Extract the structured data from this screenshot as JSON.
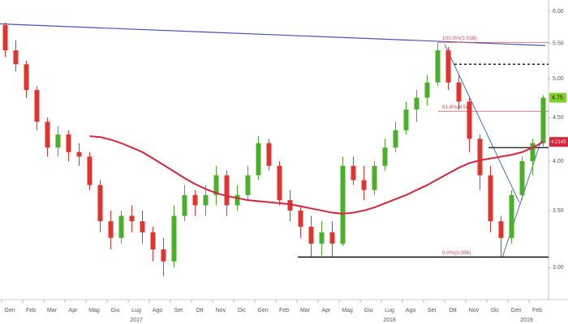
{
  "chart_data": {
    "type": "candlestick",
    "log_scale": true,
    "ylim": [
      2.78,
      6.12
    ],
    "yticks": [
      {
        "value": 3,
        "label": "3.00"
      },
      {
        "value": 3.5,
        "label": "3.50"
      },
      {
        "value": 4,
        "label": "4.00"
      },
      {
        "value": 4.5,
        "label": "4.50"
      },
      {
        "value": 5,
        "label": "5.00"
      },
      {
        "value": 5.5,
        "label": "5.50"
      },
      {
        "value": 6,
        "label": "6.00"
      }
    ],
    "categories": [
      "Gen",
      "Feb",
      "Mar",
      "Apr",
      "Mag",
      "Giu",
      "Lug",
      "Ago",
      "Set",
      "Ott",
      "Nov",
      "Dic",
      "Gen",
      "Feb",
      "Mar",
      "Apr",
      "Mag",
      "Giu",
      "Lug",
      "Ago",
      "Set",
      "Ott",
      "Nov",
      "Dic",
      "Gen",
      "Feb"
    ],
    "years": [
      "2017",
      "2018",
      "2019"
    ],
    "up_color": "#4caf2a",
    "down_color": "#e0342f",
    "candles": [
      [
        5.78,
        5.82,
        5.3,
        5.4
      ],
      [
        5.4,
        5.55,
        5.1,
        5.2
      ],
      [
        5.2,
        5.25,
        4.75,
        4.85
      ],
      [
        4.85,
        4.9,
        4.35,
        4.45
      ],
      [
        4.45,
        4.5,
        4.05,
        4.15
      ],
      [
        4.15,
        4.4,
        4.05,
        4.3
      ],
      [
        4.3,
        4.35,
        4.0,
        4.1
      ],
      [
        4.1,
        4.2,
        3.95,
        4.05
      ],
      [
        4.05,
        4.1,
        3.7,
        3.75
      ],
      [
        3.75,
        3.8,
        3.3,
        3.4
      ],
      [
        3.4,
        3.5,
        3.15,
        3.25
      ],
      [
        3.25,
        3.5,
        3.2,
        3.45
      ],
      [
        3.45,
        3.55,
        3.3,
        3.4
      ],
      [
        3.4,
        3.5,
        3.2,
        3.3
      ],
      [
        3.3,
        3.35,
        3.05,
        3.15
      ],
      [
        3.15,
        3.25,
        2.93,
        3.05
      ],
      [
        3.05,
        3.55,
        3.0,
        3.45
      ],
      [
        3.45,
        3.75,
        3.4,
        3.65
      ],
      [
        3.65,
        3.7,
        3.45,
        3.55
      ],
      [
        3.55,
        3.75,
        3.45,
        3.65
      ],
      [
        3.65,
        3.95,
        3.55,
        3.85
      ],
      [
        3.85,
        3.9,
        3.45,
        3.55
      ],
      [
        3.55,
        3.75,
        3.5,
        3.65
      ],
      [
        3.65,
        3.95,
        3.6,
        3.85
      ],
      [
        3.85,
        4.28,
        3.8,
        4.2
      ],
      [
        4.2,
        4.25,
        3.9,
        3.95
      ],
      [
        3.95,
        4.0,
        3.55,
        3.6
      ],
      [
        3.6,
        3.7,
        3.4,
        3.5
      ],
      [
        3.5,
        3.55,
        3.25,
        3.35
      ],
      [
        3.35,
        3.45,
        3.09,
        3.2
      ],
      [
        3.2,
        3.4,
        3.1,
        3.3
      ],
      [
        3.3,
        3.4,
        3.09,
        3.2
      ],
      [
        3.2,
        4.05,
        3.18,
        3.95
      ],
      [
        3.95,
        4.05,
        3.75,
        3.8
      ],
      [
        3.8,
        3.95,
        3.6,
        3.7
      ],
      [
        3.7,
        4.0,
        3.65,
        3.95
      ],
      [
        3.95,
        4.25,
        3.9,
        4.15
      ],
      [
        4.15,
        4.45,
        4.1,
        4.35
      ],
      [
        4.35,
        4.7,
        4.3,
        4.6
      ],
      [
        4.6,
        4.85,
        4.45,
        4.75
      ],
      [
        4.75,
        5.05,
        4.65,
        4.95
      ],
      [
        4.95,
        5.52,
        4.9,
        5.4
      ],
      [
        5.4,
        5.45,
        4.85,
        4.95
      ],
      [
        4.95,
        5.05,
        4.6,
        4.7
      ],
      [
        4.7,
        4.75,
        4.1,
        4.25
      ],
      [
        4.25,
        4.3,
        3.7,
        3.85
      ],
      [
        3.85,
        3.95,
        3.3,
        3.4
      ],
      [
        3.4,
        3.45,
        3.09,
        3.25
      ],
      [
        3.25,
        3.7,
        3.2,
        3.65
      ],
      [
        3.65,
        4.05,
        3.6,
        4.0
      ],
      [
        4.0,
        4.25,
        3.85,
        4.2
      ],
      [
        4.2,
        4.78,
        4.15,
        4.75
      ]
    ],
    "moving_average": {
      "color": "#d8243f",
      "values": [
        null,
        null,
        null,
        null,
        null,
        null,
        null,
        null,
        4.28,
        4.27,
        4.24,
        4.2,
        4.15,
        4.1,
        4.03,
        3.96,
        3.89,
        3.82,
        3.76,
        3.71,
        3.67,
        3.64,
        3.62,
        3.6,
        3.59,
        3.58,
        3.57,
        3.56,
        3.54,
        3.52,
        3.5,
        3.48,
        3.47,
        3.48,
        3.5,
        3.53,
        3.57,
        3.61,
        3.65,
        3.7,
        3.75,
        3.81,
        3.87,
        3.93,
        3.98,
        4.01,
        4.03,
        4.05,
        4.07,
        4.1,
        4.15,
        4.2143
      ]
    },
    "trendline": {
      "color": "#4a52b8",
      "values": [
        5.8,
        5.47
      ]
    },
    "fib_levels": [
      {
        "value": 5.518,
        "label": "100.0%(5.518)"
      },
      {
        "value": 4.58,
        "label": "61.8%(4.58)"
      },
      {
        "value": 3.086,
        "label": "0.0%(3.086)"
      }
    ],
    "resistance_dashed": 5.2,
    "breakout_level": 4.15,
    "support_level": 3.086,
    "last_price": 4.75,
    "ma_last": 4.2143
  }
}
